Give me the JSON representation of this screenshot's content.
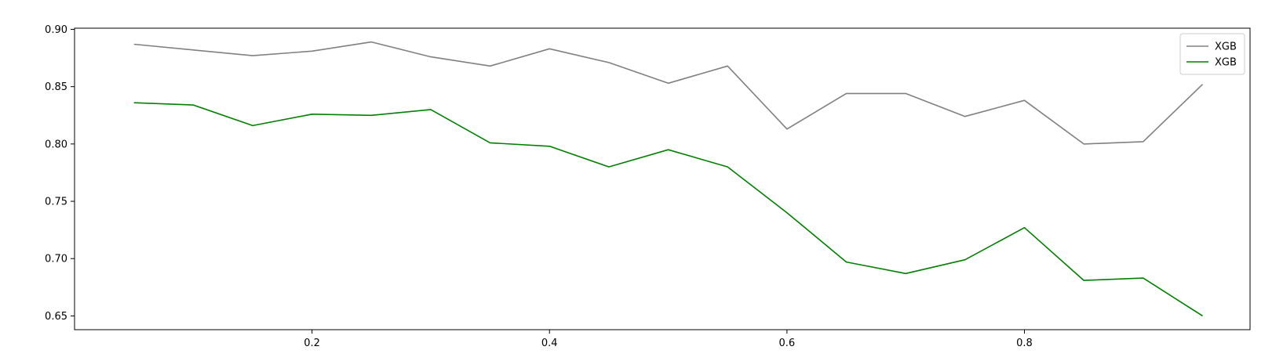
{
  "chart_data": {
    "type": "line",
    "title": "",
    "xlabel": "",
    "ylabel": "",
    "xlim": [
      0.0,
      0.99
    ],
    "ylim": [
      0.638,
      0.901
    ],
    "x_ticks": [
      0.2,
      0.4,
      0.6,
      0.8
    ],
    "x_tick_labels": [
      "0.2",
      "0.4",
      "0.6",
      "0.8"
    ],
    "y_ticks": [
      0.65,
      0.7,
      0.75,
      0.8,
      0.85,
      0.9
    ],
    "y_tick_labels": [
      "0.65",
      "0.70",
      "0.75",
      "0.80",
      "0.85",
      "0.90"
    ],
    "grid": false,
    "legend_position": "top-right",
    "x": [
      0.05,
      0.1,
      0.15,
      0.2,
      0.25,
      0.3,
      0.35,
      0.4,
      0.45,
      0.5,
      0.55,
      0.6,
      0.65,
      0.7,
      0.75,
      0.8,
      0.85,
      0.9,
      0.95
    ],
    "series": [
      {
        "name": "XGB",
        "color": "#808080",
        "values": [
          0.887,
          0.882,
          0.877,
          0.881,
          0.889,
          0.876,
          0.868,
          0.883,
          0.871,
          0.853,
          0.868,
          0.813,
          0.844,
          0.844,
          0.824,
          0.838,
          0.8,
          0.802,
          0.852
        ]
      },
      {
        "name": "XGB",
        "color": "#008000",
        "values": [
          0.836,
          0.834,
          0.816,
          0.826,
          0.825,
          0.83,
          0.801,
          0.798,
          0.78,
          0.795,
          0.78,
          0.74,
          0.697,
          0.687,
          0.699,
          0.727,
          0.681,
          0.683,
          0.65
        ]
      }
    ]
  }
}
